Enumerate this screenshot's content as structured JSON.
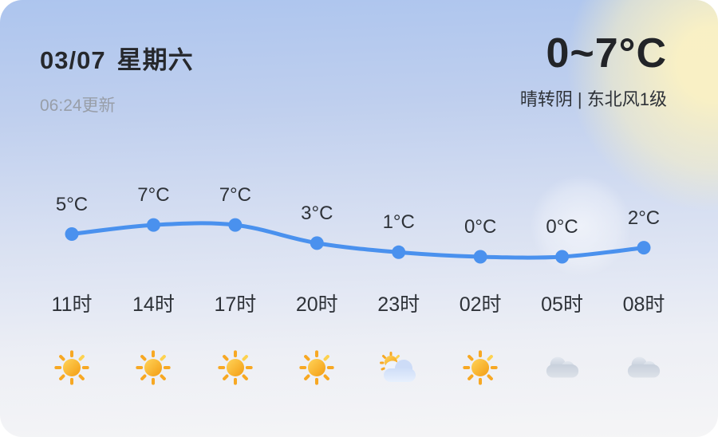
{
  "header": {
    "date": "03/07",
    "weekday": "星期六",
    "updated": "06:24更新",
    "temp_range": "0~7°C",
    "condition": "晴转阴 | 东北风1级"
  },
  "chart_data": {
    "type": "line",
    "x": [
      "11时",
      "14时",
      "17时",
      "20时",
      "23时",
      "02时",
      "05时",
      "08时"
    ],
    "series": [
      {
        "name": "hourly-temperature",
        "values": [
          5,
          7,
          7,
          3,
          1,
          0,
          0,
          2
        ]
      }
    ],
    "point_labels": [
      "5°C",
      "7°C",
      "7°C",
      "3°C",
      "1°C",
      "0°C",
      "0°C",
      "2°C"
    ],
    "icons": [
      "sun-icon",
      "sun-icon",
      "sun-icon",
      "sun-icon",
      "sun-cloud-icon",
      "sun-icon",
      "cloud-icon",
      "cloud-icon"
    ],
    "ylim": [
      -3,
      10
    ],
    "grid": false,
    "legend_position": "none"
  },
  "colors": {
    "line": "#4a91ee",
    "sun": "#f7a823",
    "text_dark": "#26282c",
    "text_gray": "#989ea8"
  }
}
